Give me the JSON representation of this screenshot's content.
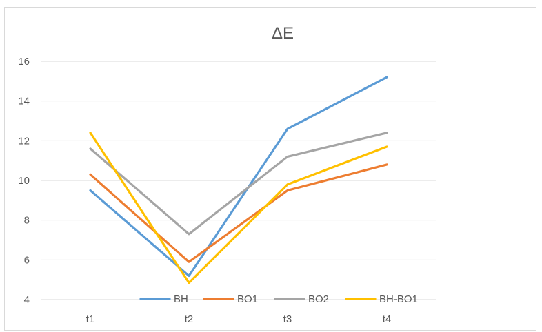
{
  "chart_data": {
    "type": "line",
    "title": "ΔE",
    "categories": [
      "t1",
      "t2",
      "t3",
      "t4"
    ],
    "ylim": [
      4,
      16
    ],
    "yticks": [
      4,
      6,
      8,
      10,
      12,
      14,
      16
    ],
    "grid": true,
    "legend_position": "bottom",
    "series": [
      {
        "name": "BH",
        "color": "#5b9bd5",
        "values": [
          9.5,
          5.2,
          12.6,
          15.2
        ]
      },
      {
        "name": "BO1",
        "color": "#ed7d31",
        "values": [
          10.3,
          5.9,
          9.5,
          10.8
        ]
      },
      {
        "name": "BO2",
        "color": "#a5a5a5",
        "values": [
          11.6,
          7.3,
          11.2,
          12.4
        ]
      },
      {
        "name": "BH-BO1",
        "color": "#ffc000",
        "values": [
          12.4,
          4.85,
          9.8,
          11.7
        ]
      }
    ]
  }
}
